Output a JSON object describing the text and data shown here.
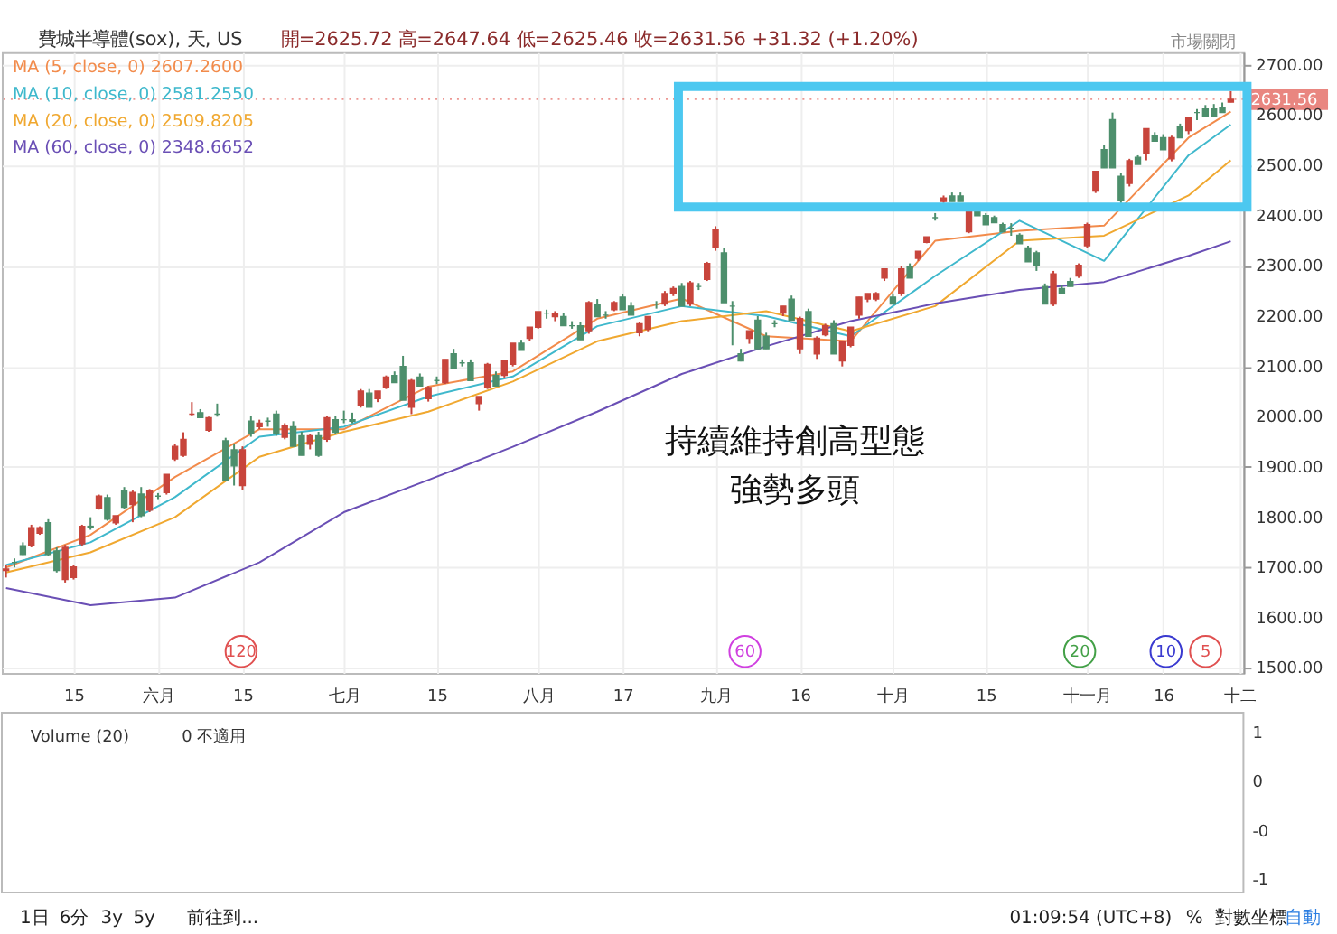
{
  "chart_data": {
    "type": "candlestick",
    "title": "費城半導體(sox), 天, US",
    "subtitle": "開=2625.72  高=2647.64  低=2625.46  收=2631.56  +31.32 (+1.20%)",
    "categories": [
      null,
      null,
      null,
      null,
      null,
      null,
      null,
      null,
      "15",
      null,
      null,
      null,
      null,
      null,
      null,
      null,
      null,
      null,
      "六月",
      null,
      null,
      null,
      null,
      null,
      null,
      null,
      null,
      null,
      "15",
      null,
      null,
      null,
      null,
      null,
      null,
      null,
      null,
      null,
      null,
      null,
      "七月",
      null,
      null,
      null,
      null,
      null,
      null,
      null,
      null,
      null,
      null,
      "15",
      null,
      null,
      null,
      null,
      null,
      null,
      null,
      null,
      null,
      null,
      null,
      "八月",
      null,
      null,
      null,
      null,
      null,
      null,
      null,
      null,
      null,
      "17",
      null,
      null,
      null,
      null,
      null,
      null,
      null,
      null,
      null,
      null,
      "九月",
      null,
      null,
      null,
      null,
      null,
      null,
      null,
      null,
      null,
      "16",
      null,
      null,
      null,
      null,
      null,
      null,
      null,
      null,
      null,
      null,
      "十月",
      null,
      null,
      null,
      null,
      null,
      null,
      null,
      null,
      null,
      null,
      "15",
      null,
      null,
      null,
      null,
      null,
      null,
      null,
      null,
      null,
      null,
      null,
      "十一月",
      null,
      null,
      null,
      null,
      null,
      null,
      null,
      null,
      "16",
      null,
      null,
      null,
      null,
      null,
      null,
      null,
      null,
      "十二"
    ],
    "ohlc": [
      [
        1694,
        1705,
        1680,
        1697
      ],
      [
        1710,
        1718,
        1700,
        1710
      ],
      [
        1743,
        1750,
        1725,
        1726
      ],
      [
        1743,
        1785,
        1740,
        1779
      ],
      [
        1768,
        1782,
        1765,
        1779
      ],
      [
        1789,
        1796,
        1722,
        1726
      ],
      [
        1733,
        1740,
        1690,
        1694
      ],
      [
        1676,
        1745,
        1670,
        1740
      ],
      [
        1680,
        1705,
        1676,
        1701
      ],
      [
        1747,
        1785,
        1743,
        1782
      ],
      [
        1782,
        1800,
        1775,
        1780
      ],
      [
        1817,
        1845,
        1815,
        1842
      ],
      [
        1839,
        1845,
        1793,
        1796
      ],
      [
        1789,
        1803,
        1785,
        1803
      ],
      [
        1853,
        1860,
        1817,
        1820
      ],
      [
        1825,
        1853,
        1790,
        1849
      ],
      [
        1846,
        1860,
        1800,
        1803
      ],
      [
        1814,
        1856,
        1810,
        1853
      ],
      [
        1842,
        1848,
        1836,
        1842
      ],
      [
        1849,
        1885,
        1845,
        1885
      ],
      [
        1916,
        1945,
        1912,
        1941
      ],
      [
        1923,
        1969,
        1920,
        1955
      ],
      [
        2005,
        2029,
        2001,
        2005
      ],
      [
        2008,
        2015,
        1998,
        1998
      ],
      [
        1973,
        2000,
        1970,
        1998
      ],
      [
        2005,
        2026,
        2000,
        2005
      ],
      [
        1952,
        1958,
        1874,
        1874
      ],
      [
        1934,
        1945,
        1863,
        1902
      ],
      [
        1863,
        1941,
        1855,
        1934
      ],
      [
        1991,
        2001,
        1960,
        1966
      ],
      [
        1980,
        1994,
        1975,
        1987
      ],
      [
        1991,
        1998,
        1980,
        1991
      ],
      [
        2005,
        2012,
        1962,
        1966
      ],
      [
        1959,
        1987,
        1955,
        1983
      ],
      [
        1980,
        1991,
        1941,
        1941
      ],
      [
        1962,
        1970,
        1923,
        1923
      ],
      [
        1945,
        1966,
        1935,
        1962
      ],
      [
        1962,
        1970,
        1920,
        1923
      ],
      [
        1955,
        2001,
        1950,
        1998
      ],
      [
        1994,
        2001,
        1966,
        1969
      ],
      [
        1994,
        2012,
        1987,
        1994
      ],
      [
        1994,
        2008,
        1987,
        1991
      ],
      [
        2022,
        2055,
        2018,
        2051
      ],
      [
        2047,
        2055,
        2019,
        2019
      ],
      [
        2036,
        2051,
        2029,
        2051
      ],
      [
        2058,
        2082,
        2055,
        2079
      ],
      [
        2082,
        2090,
        2068,
        2068
      ],
      [
        2100,
        2121,
        2033,
        2033
      ],
      [
        2019,
        2075,
        2005,
        2072
      ],
      [
        2079,
        2086,
        2061,
        2061
      ],
      [
        2036,
        2061,
        2030,
        2058
      ],
      [
        2072,
        2080,
        2065,
        2072
      ],
      [
        2068,
        2114,
        2065,
        2114
      ],
      [
        2125,
        2135,
        2096,
        2096
      ],
      [
        2107,
        2114,
        2100,
        2107
      ],
      [
        2107,
        2114,
        2072,
        2072
      ],
      [
        2026,
        2040,
        2012,
        2040
      ],
      [
        2058,
        2107,
        2055,
        2104
      ],
      [
        2082,
        2090,
        2061,
        2061
      ],
      [
        2082,
        2111,
        2078,
        2111
      ],
      [
        2104,
        2146,
        2100,
        2146
      ],
      [
        2146,
        2153,
        2132,
        2132
      ],
      [
        2156,
        2178,
        2150,
        2178
      ],
      [
        2178,
        2209,
        2175,
        2209
      ],
      [
        2206,
        2213,
        2195,
        2206
      ],
      [
        2199,
        2210,
        2190,
        2206
      ],
      [
        2199,
        2206,
        2181,
        2181
      ],
      [
        2181,
        2190,
        2175,
        2181
      ],
      [
        2181,
        2188,
        2153,
        2153
      ],
      [
        2171,
        2230,
        2165,
        2227
      ],
      [
        2224,
        2234,
        2199,
        2199
      ],
      [
        2202,
        2210,
        2195,
        2202
      ],
      [
        2213,
        2230,
        2210,
        2227
      ],
      [
        2238,
        2245,
        2213,
        2213
      ],
      [
        2220,
        2228,
        2202,
        2202
      ],
      [
        2167,
        2188,
        2160,
        2185
      ],
      [
        2174,
        2200,
        2170,
        2199
      ],
      [
        2224,
        2230,
        2215,
        2224
      ],
      [
        2224,
        2250,
        2220,
        2245
      ],
      [
        2245,
        2259,
        2240,
        2255
      ],
      [
        2259,
        2266,
        2220,
        2220
      ],
      [
        2224,
        2270,
        2220,
        2266
      ],
      [
        2259,
        2266,
        2252,
        2259
      ],
      [
        2273,
        2308,
        2270,
        2305
      ],
      [
        2336,
        2379,
        2330,
        2372
      ],
      [
        2326,
        2335,
        2227,
        2227
      ],
      [
        2220,
        2230,
        2142,
        2220
      ],
      [
        2125,
        2135,
        2110,
        2111
      ],
      [
        2156,
        2171,
        2145,
        2171
      ],
      [
        2192,
        2200,
        2135,
        2135
      ],
      [
        2160,
        2167,
        2135,
        2135
      ],
      [
        2185,
        2192,
        2178,
        2185
      ],
      [
        2206,
        2220,
        2200,
        2220
      ],
      [
        2234,
        2241,
        2192,
        2192
      ],
      [
        2135,
        2199,
        2125,
        2195
      ],
      [
        2209,
        2215,
        2160,
        2160
      ],
      [
        2125,
        2160,
        2115,
        2156
      ],
      [
        2163,
        2185,
        2160,
        2181
      ],
      [
        2185,
        2192,
        2125,
        2125
      ],
      [
        2111,
        2149,
        2100,
        2149
      ],
      [
        2142,
        2178,
        2138,
        2178
      ],
      [
        2202,
        2238,
        2195,
        2238
      ],
      [
        2234,
        2245,
        2228,
        2245
      ],
      [
        2234,
        2248,
        2230,
        2245
      ],
      [
        2276,
        2294,
        2270,
        2294
      ],
      [
        2238,
        2245,
        2224,
        2224
      ],
      [
        2245,
        2300,
        2240,
        2294
      ],
      [
        2298,
        2305,
        2276,
        2276
      ],
      [
        2315,
        2329,
        2310,
        2329
      ],
      [
        2347,
        2358,
        2345,
        2358
      ],
      [
        2396,
        2405,
        2390,
        2396
      ],
      [
        2428,
        2440,
        2425,
        2435
      ],
      [
        2439,
        2446,
        2428,
        2428
      ],
      [
        2439,
        2446,
        2428,
        2428
      ],
      [
        2368,
        2414,
        2365,
        2407
      ],
      [
        2414,
        2420,
        2400,
        2400
      ],
      [
        2400,
        2405,
        2382,
        2382
      ],
      [
        2396,
        2400,
        2386,
        2386
      ],
      [
        2382,
        2386,
        2368,
        2368
      ],
      [
        2375,
        2385,
        2360,
        2375
      ],
      [
        2361,
        2365,
        2344,
        2344
      ],
      [
        2336,
        2340,
        2308,
        2308
      ],
      [
        2326,
        2330,
        2290,
        2301
      ],
      [
        2259,
        2265,
        2224,
        2224
      ],
      [
        2224,
        2290,
        2220,
        2284
      ],
      [
        2255,
        2262,
        2245,
        2245
      ],
      [
        2269,
        2276,
        2259,
        2259
      ],
      [
        2280,
        2305,
        2276,
        2301
      ],
      [
        2340,
        2386,
        2335,
        2382
      ],
      [
        2449,
        2488,
        2445,
        2488
      ],
      [
        2531,
        2540,
        2495,
        2495
      ],
      [
        2591,
        2605,
        2495,
        2495
      ],
      [
        2478,
        2485,
        2425,
        2431
      ],
      [
        2464,
        2513,
        2458,
        2509
      ],
      [
        2516,
        2520,
        2502,
        2502
      ],
      [
        2524,
        2573,
        2510,
        2573
      ],
      [
        2559,
        2566,
        2548,
        2548
      ],
      [
        2555,
        2562,
        2531,
        2531
      ],
      [
        2513,
        2559,
        2508,
        2555
      ],
      [
        2576,
        2583,
        2555,
        2555
      ],
      [
        2569,
        2594,
        2562,
        2594
      ],
      [
        2605,
        2612,
        2590,
        2605
      ],
      [
        2612,
        2620,
        2598,
        2598
      ],
      [
        2612,
        2622,
        2598,
        2598
      ],
      [
        2615,
        2625,
        2605,
        2605
      ],
      [
        2625.72,
        2647.64,
        2625.46,
        2631.56
      ],
      null
    ],
    "colors": [
      "#c8453c",
      "#4d8f6c",
      "#4d8f6c",
      "#c8453c",
      "#c8453c",
      "#4d8f6c",
      "#4d8f6c",
      "#c8453c",
      "#c8453c",
      "#c8453c",
      "#4d8f6c",
      "#c8453c",
      "#4d8f6c",
      "#c8453c",
      "#4d8f6c",
      "#c8453c",
      "#4d8f6c",
      "#c8453c",
      "#4d8f6c",
      "#c8453c",
      "#c8453c",
      "#c8453c",
      "#c8453c",
      "#4d8f6c",
      "#c8453c",
      "#4d8f6c",
      "#4d8f6c",
      "#4d8f6c",
      "#c8453c",
      "#4d8f6c",
      "#c8453c",
      "#4d8f6c",
      "#4d8f6c",
      "#c8453c",
      "#4d8f6c",
      "#4d8f6c",
      "#c8453c",
      "#4d8f6c",
      "#c8453c",
      "#4d8f6c",
      "#4d8f6c",
      "#4d8f6c",
      "#c8453c",
      "#4d8f6c",
      "#c8453c",
      "#c8453c",
      "#4d8f6c",
      "#4d8f6c",
      "#c8453c",
      "#4d8f6c",
      "#c8453c",
      "#4d8f6c",
      "#c8453c",
      "#4d8f6c",
      "#4d8f6c",
      "#4d8f6c",
      "#c8453c",
      "#c8453c",
      "#4d8f6c",
      "#c8453c",
      "#c8453c",
      "#4d8f6c",
      "#c8453c",
      "#c8453c",
      "#4d8f6c",
      "#c8453c",
      "#4d8f6c",
      "#4d8f6c",
      "#4d8f6c",
      "#c8453c",
      "#4d8f6c",
      "#4d8f6c",
      "#c8453c",
      "#4d8f6c",
      "#4d8f6c",
      "#c8453c",
      "#c8453c",
      "#4d8f6c",
      "#c8453c",
      "#c8453c",
      "#4d8f6c",
      "#c8453c",
      "#4d8f6c",
      "#c8453c",
      "#c8453c",
      "#4d8f6c",
      "#4d8f6c",
      "#4d8f6c",
      "#c8453c",
      "#4d8f6c",
      "#4d8f6c",
      "#4d8f6c",
      "#c8453c",
      "#4d8f6c",
      "#c8453c",
      "#4d8f6c",
      "#c8453c",
      "#c8453c",
      "#4d8f6c",
      "#c8453c",
      "#c8453c",
      "#c8453c",
      "#c8453c",
      "#c8453c",
      "#c8453c",
      "#4d8f6c",
      "#c8453c",
      "#4d8f6c",
      "#c8453c",
      "#c8453c",
      "#4d8f6c",
      "#c8453c",
      "#4d8f6c",
      "#4d8f6c",
      "#c8453c",
      "#4d8f6c",
      "#4d8f6c",
      "#4d8f6c",
      "#4d8f6c",
      "#4d8f6c",
      "#4d8f6c",
      "#4d8f6c",
      "#4d8f6c",
      "#4d8f6c",
      "#c8453c",
      "#4d8f6c",
      "#4d8f6c",
      "#c8453c",
      "#c8453c",
      "#c8453c",
      "#4d8f6c",
      "#4d8f6c",
      "#4d8f6c",
      "#c8453c",
      "#4d8f6c",
      "#c8453c",
      "#4d8f6c",
      "#4d8f6c",
      "#c8453c",
      "#4d8f6c",
      "#c8453c",
      "#4d8f6c",
      "#4d8f6c",
      "#4d8f6c",
      "#4d8f6c",
      "#c8453c",
      null
    ],
    "series": [
      {
        "name": "MA (5, close, 0)  2607.2600",
        "type": "line",
        "color": "#f28b4b",
        "values": [
          1700,
          null,
          null,
          null,
          null,
          null,
          null,
          null,
          null,
          null,
          1765,
          null,
          null,
          null,
          null,
          null,
          null,
          null,
          null,
          null,
          1880,
          null,
          null,
          null,
          null,
          null,
          null,
          null,
          null,
          null,
          1975,
          null,
          null,
          null,
          null,
          null,
          null,
          null,
          null,
          null,
          1975,
          null,
          null,
          null,
          null,
          null,
          null,
          null,
          null,
          null,
          2060,
          null,
          null,
          null,
          null,
          null,
          null,
          null,
          null,
          null,
          2090,
          null,
          null,
          null,
          null,
          null,
          null,
          null,
          null,
          null,
          2195,
          null,
          null,
          null,
          null,
          null,
          null,
          null,
          null,
          null,
          2235,
          null,
          null,
          null,
          null,
          null,
          null,
          null,
          null,
          null,
          2160,
          null,
          null,
          null,
          null,
          null,
          null,
          null,
          null,
          null,
          2150,
          null,
          null,
          null,
          null,
          null,
          null,
          null,
          null,
          null,
          2350,
          null,
          null,
          null,
          null,
          null,
          null,
          null,
          null,
          null,
          2370,
          null,
          null,
          null,
          null,
          null,
          null,
          null,
          null,
          null,
          2380,
          null,
          null,
          null,
          null,
          null,
          null,
          null,
          null,
          null,
          2555,
          null,
          null,
          null,
          null,
          2607,
          null
        ]
      },
      {
        "name": "MA (10, close, 0)  2581.2550",
        "type": "line",
        "color": "#3fb8cc",
        "values": [
          1705,
          null,
          null,
          null,
          null,
          null,
          null,
          null,
          null,
          null,
          1750,
          null,
          null,
          null,
          null,
          null,
          null,
          null,
          null,
          null,
          1840,
          null,
          null,
          null,
          null,
          null,
          null,
          null,
          null,
          null,
          1960,
          null,
          null,
          null,
          null,
          null,
          null,
          null,
          null,
          null,
          1980,
          null,
          null,
          null,
          null,
          null,
          null,
          null,
          null,
          null,
          2040,
          null,
          null,
          null,
          null,
          null,
          null,
          null,
          null,
          null,
          2080,
          null,
          null,
          null,
          null,
          null,
          null,
          null,
          null,
          null,
          2180,
          null,
          null,
          null,
          null,
          null,
          null,
          null,
          null,
          null,
          2220,
          null,
          null,
          null,
          null,
          null,
          null,
          null,
          null,
          null,
          2200,
          null,
          null,
          null,
          null,
          null,
          null,
          null,
          null,
          null,
          2160,
          null,
          null,
          null,
          null,
          null,
          null,
          null,
          null,
          null,
          2280,
          null,
          null,
          null,
          null,
          null,
          null,
          null,
          null,
          null,
          2390,
          null,
          null,
          null,
          null,
          null,
          null,
          null,
          null,
          null,
          2310,
          null,
          null,
          null,
          null,
          null,
          null,
          null,
          null,
          null,
          2520,
          null,
          null,
          null,
          null,
          2581,
          null
        ]
      },
      {
        "name": "MA (20, close, 0)  2509.8205",
        "type": "line",
        "color": "#f0a830",
        "values": [
          1690,
          null,
          null,
          null,
          null,
          null,
          null,
          null,
          null,
          null,
          1730,
          null,
          null,
          null,
          null,
          null,
          null,
          null,
          null,
          null,
          1800,
          null,
          null,
          null,
          null,
          null,
          null,
          null,
          null,
          null,
          1920,
          null,
          null,
          null,
          null,
          null,
          null,
          null,
          null,
          null,
          1970,
          null,
          null,
          null,
          null,
          null,
          null,
          null,
          null,
          null,
          2010,
          null,
          null,
          null,
          null,
          null,
          null,
          null,
          null,
          null,
          2070,
          null,
          null,
          null,
          null,
          null,
          null,
          null,
          null,
          null,
          2150,
          null,
          null,
          null,
          null,
          null,
          null,
          null,
          null,
          null,
          2190,
          null,
          null,
          null,
          null,
          null,
          null,
          null,
          null,
          null,
          2210,
          null,
          null,
          null,
          null,
          null,
          null,
          null,
          null,
          null,
          2170,
          null,
          null,
          null,
          null,
          null,
          null,
          null,
          null,
          null,
          2220,
          null,
          null,
          null,
          null,
          null,
          null,
          null,
          null,
          null,
          2350,
          null,
          null,
          null,
          null,
          null,
          null,
          null,
          null,
          null,
          2360,
          null,
          null,
          null,
          null,
          null,
          null,
          null,
          null,
          null,
          2440,
          null,
          null,
          null,
          null,
          2510,
          null
        ]
      },
      {
        "name": "MA (60, close, 0)  2348.6652",
        "type": "line",
        "color": "#6a4fb5",
        "values": [
          1659,
          null,
          null,
          null,
          null,
          null,
          null,
          null,
          null,
          null,
          1625,
          null,
          null,
          null,
          null,
          null,
          null,
          null,
          null,
          null,
          1640,
          null,
          null,
          null,
          null,
          null,
          null,
          null,
          null,
          null,
          1710,
          null,
          null,
          null,
          null,
          null,
          null,
          null,
          null,
          null,
          1810,
          null,
          null,
          null,
          null,
          null,
          null,
          null,
          null,
          null,
          1874,
          null,
          null,
          null,
          null,
          null,
          null,
          null,
          null,
          null,
          1940,
          null,
          null,
          null,
          null,
          null,
          null,
          null,
          null,
          null,
          2010,
          null,
          null,
          null,
          null,
          null,
          null,
          null,
          null,
          null,
          2085,
          null,
          null,
          null,
          null,
          null,
          null,
          null,
          null,
          null,
          2140,
          null,
          null,
          null,
          null,
          null,
          null,
          null,
          null,
          null,
          2190,
          null,
          null,
          null,
          null,
          null,
          null,
          null,
          null,
          null,
          2225,
          null,
          null,
          null,
          null,
          null,
          null,
          null,
          null,
          null,
          2252,
          null,
          null,
          null,
          null,
          null,
          null,
          null,
          null,
          null,
          2268,
          null,
          null,
          null,
          null,
          null,
          null,
          null,
          null,
          null,
          2320,
          null,
          null,
          null,
          null,
          2349,
          null
        ]
      }
    ],
    "ylim": [
      1490,
      2725
    ],
    "yticks": [
      {
        "value": 1500,
        "label": "1500.00"
      },
      {
        "value": 1600,
        "label": "1600.00"
      },
      {
        "value": 1700,
        "label": "1700.00"
      },
      {
        "value": 1800,
        "label": "1800.00"
      },
      {
        "value": 1900,
        "label": "1900.00"
      },
      {
        "value": 2000,
        "label": "2000.00"
      },
      {
        "value": 2100,
        "label": "2100.00"
      },
      {
        "value": 2200,
        "label": "2200.00"
      },
      {
        "value": 2300,
        "label": "2300.00"
      },
      {
        "value": 2400,
        "label": "2400.00"
      },
      {
        "value": 2500,
        "label": "2500.00"
      },
      {
        "value": 2600,
        "label": "2600.00"
      },
      {
        "value": 2700,
        "label": "2700.00"
      }
    ],
    "ref_lines": [
      {
        "axis": "y",
        "value": 2631.56,
        "label": "2631.56",
        "color": "#e0524a",
        "line_style": "dotted"
      }
    ],
    "annotations": [
      "持續維持創高型態",
      "強勢多頭",
      "120",
      "60",
      "20",
      "10",
      "5",
      "市場關閉",
      "Volume (20)",
      "0 不適用",
      "1",
      "0",
      "-0",
      "-1",
      "1日",
      "6分",
      "3y",
      "5y",
      "前往到...",
      "01:09:54 (UTC+8)",
      "%",
      "對數坐標",
      "自動"
    ],
    "grid": true,
    "legend": "top left"
  }
}
